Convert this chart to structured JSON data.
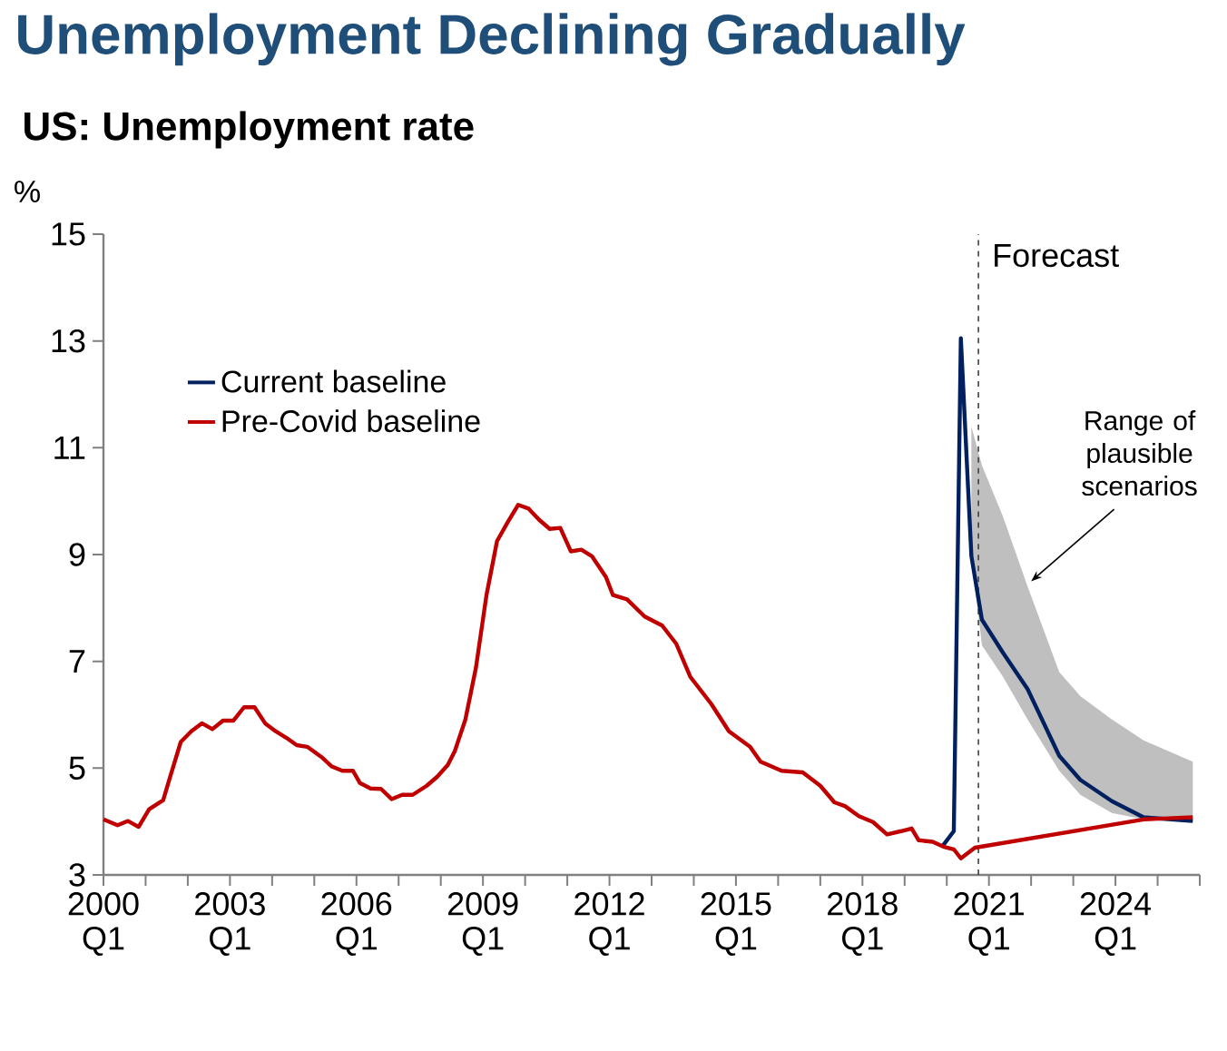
{
  "chart_data": {
    "type": "line",
    "title": "Unemployment Declining Gradually",
    "subtitle": "US: Unemployment rate",
    "ylabel": "%",
    "xlim": [
      "2000-01",
      "2026-01"
    ],
    "ylim": [
      3,
      15
    ],
    "yticks": [
      3,
      5,
      7,
      9,
      11,
      13,
      15
    ],
    "xticks": [
      {
        "value": "2000-01",
        "label": "2000 Q1"
      },
      {
        "value": "2001-01",
        "label": null
      },
      {
        "value": "2002-01",
        "label": null
      },
      {
        "value": "2003-01",
        "label": "2003 Q1"
      },
      {
        "value": "2004-01",
        "label": null
      },
      {
        "value": "2005-01",
        "label": null
      },
      {
        "value": "2006-01",
        "label": "2006 Q1"
      },
      {
        "value": "2007-01",
        "label": null
      },
      {
        "value": "2008-01",
        "label": null
      },
      {
        "value": "2009-01",
        "label": "2009 Q1"
      },
      {
        "value": "2010-01",
        "label": null
      },
      {
        "value": "2011-01",
        "label": null
      },
      {
        "value": "2012-01",
        "label": "2012 Q1"
      },
      {
        "value": "2013-01",
        "label": null
      },
      {
        "value": "2014-01",
        "label": null
      },
      {
        "value": "2015-01",
        "label": "2015 Q1"
      },
      {
        "value": "2016-01",
        "label": null
      },
      {
        "value": "2017-01",
        "label": null
      },
      {
        "value": "2018-01",
        "label": "2018 Q1"
      },
      {
        "value": "2019-01",
        "label": null
      },
      {
        "value": "2020-01",
        "label": null
      },
      {
        "value": "2021-01",
        "label": "2021 Q1"
      },
      {
        "value": "2022-01",
        "label": null
      },
      {
        "value": "2023-01",
        "label": null
      },
      {
        "value": "2024-01",
        "label": "2024 Q1"
      },
      {
        "value": "2025-01",
        "label": null
      },
      {
        "value": "2026-01",
        "label": null
      }
    ],
    "series": [
      {
        "name": "Current baseline",
        "color": "#002060",
        "x": [
          "2019-12",
          "2020-03",
          "2020-05",
          "2020-08",
          "2020-11",
          "2021-05",
          "2021-12",
          "2022-09",
          "2023-03",
          "2023-12",
          "2024-09",
          "2025-11"
        ],
        "values": [
          3.56,
          3.82,
          13.05,
          8.97,
          7.78,
          7.16,
          6.48,
          5.23,
          4.78,
          4.38,
          4.08,
          4.01
        ],
        "upper": [
          null,
          null,
          null,
          11.4,
          10.67,
          9.71,
          8.4,
          6.8,
          6.35,
          5.91,
          5.52,
          5.12
        ],
        "lower": [
          null,
          null,
          null,
          8.97,
          7.3,
          6.71,
          5.91,
          4.95,
          4.5,
          4.16,
          4.04,
          4.0
        ]
      },
      {
        "name": "Pre-Covid baseline",
        "color": "#c00000",
        "x": [
          "2000-01",
          "2000-05",
          "2000-08",
          "2000-11",
          "2001-02",
          "2001-06",
          "2001-08",
          "2001-11",
          "2002-02",
          "2002-05",
          "2002-08",
          "2002-11",
          "2003-02",
          "2003-05",
          "2003-08",
          "2003-11",
          "2004-02",
          "2004-05",
          "2004-08",
          "2004-11",
          "2005-03",
          "2005-06",
          "2005-09",
          "2005-12",
          "2006-02",
          "2006-05",
          "2006-08",
          "2006-11",
          "2007-02",
          "2007-05",
          "2007-09",
          "2007-12",
          "2008-03",
          "2008-05",
          "2008-08",
          "2008-11",
          "2009-02",
          "2009-05",
          "2009-08",
          "2009-11",
          "2010-02",
          "2010-05",
          "2010-08",
          "2010-11",
          "2011-02",
          "2011-05",
          "2011-08",
          "2011-12",
          "2012-02",
          "2012-06",
          "2012-11",
          "2013-04",
          "2013-08",
          "2013-12",
          "2014-06",
          "2014-11",
          "2015-05",
          "2015-08",
          "2016-02",
          "2016-08",
          "2017-01",
          "2017-05",
          "2017-08",
          "2017-12",
          "2018-04",
          "2018-08",
          "2018-12",
          "2019-03",
          "2019-05",
          "2019-09",
          "2019-12",
          "2020-03",
          "2020-05",
          "2020-09",
          "2024-09",
          "2025-11"
        ],
        "values": [
          4.04,
          3.93,
          4.01,
          3.9,
          4.23,
          4.4,
          4.84,
          5.49,
          5.69,
          5.84,
          5.73,
          5.89,
          5.89,
          6.14,
          6.14,
          5.84,
          5.69,
          5.57,
          5.43,
          5.4,
          5.21,
          5.03,
          4.95,
          4.95,
          4.72,
          4.62,
          4.61,
          4.42,
          4.5,
          4.5,
          4.67,
          4.84,
          5.06,
          5.32,
          5.91,
          6.88,
          8.24,
          9.25,
          9.6,
          9.93,
          9.86,
          9.65,
          9.48,
          9.5,
          9.06,
          9.09,
          8.97,
          8.58,
          8.24,
          8.16,
          7.84,
          7.67,
          7.33,
          6.71,
          6.2,
          5.69,
          5.4,
          5.12,
          4.95,
          4.92,
          4.67,
          4.36,
          4.29,
          4.1,
          3.99,
          3.76,
          3.82,
          3.87,
          3.65,
          3.62,
          3.53,
          3.48,
          3.31,
          3.51,
          4.04,
          4.08
        ]
      }
    ],
    "ref_lines": [
      {
        "axis": "x",
        "value": "2020-10",
        "label": "Forecast",
        "line_style": "dashed",
        "color": "#404040"
      }
    ],
    "annotations": [
      {
        "text": "Range of plausible scenarios",
        "x": "2022-01",
        "y": 8.5
      }
    ],
    "legend": "top left",
    "grid": false,
    "marker": "none",
    "line_style": "solid"
  }
}
